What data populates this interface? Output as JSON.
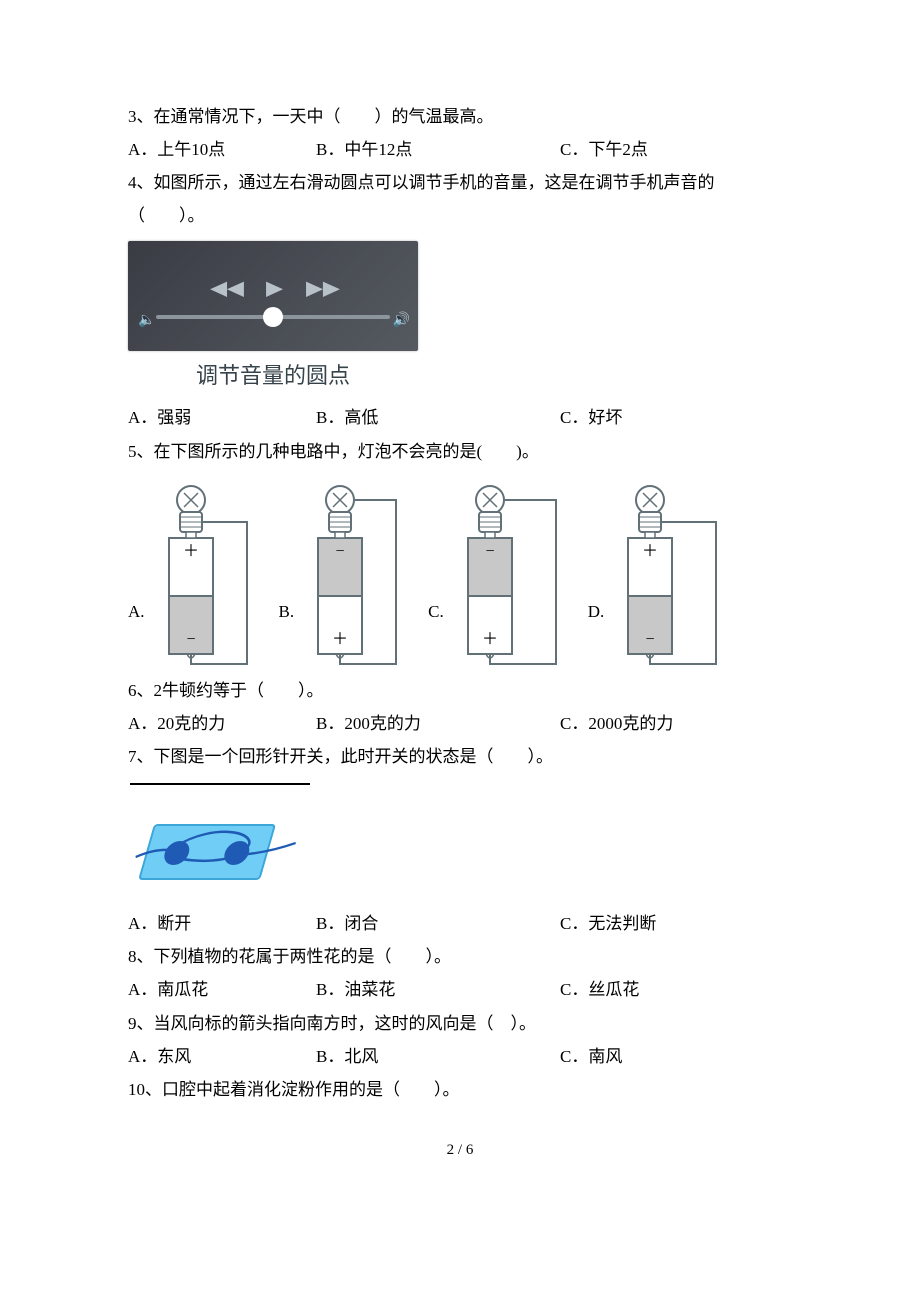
{
  "q3": {
    "stem": "3、在通常情况下，一天中（　　）的气温最高。",
    "opts": {
      "a": "A．上午10点",
      "b": "B．中午12点",
      "c": "C．下午2点"
    }
  },
  "q4": {
    "stem1": "4、如图所示，通过左右滑动圆点可以调节手机的音量，这是在调节手机声音的",
    "stem2": "（　　）。",
    "caption": "调节音量的圆点",
    "opts": {
      "a": "A．强弱",
      "b": "B．高低",
      "c": "C．好坏"
    }
  },
  "q5": {
    "stem": "5、在下图所示的几种电路中，灯泡不会亮的是(　　)。",
    "labels": {
      "a": "A.",
      "b": "B.",
      "c": "C.",
      "d": "D."
    },
    "circuits": {
      "A": {
        "top_mark": "＋",
        "bot_mark": "−",
        "top_fill": "#ffffff",
        "bot_fill": "#c8c8c8",
        "wire_from_bulb_base": true
      },
      "B": {
        "top_mark": "−",
        "bot_mark": "＋",
        "top_fill": "#c8c8c8",
        "bot_fill": "#ffffff",
        "wire_from_bulb_base": false
      },
      "C": {
        "top_mark": "−",
        "bot_mark": "＋",
        "top_fill": "#c8c8c8",
        "bot_fill": "#ffffff",
        "wire_from_bulb_base": false
      },
      "D": {
        "top_mark": "＋",
        "bot_mark": "−",
        "top_fill": "#ffffff",
        "bot_fill": "#c8c8c8",
        "wire_from_bulb_base": true
      }
    }
  },
  "q6": {
    "stem": "6、2牛顿约等于（　　）。",
    "opts": {
      "a": "A．20克的力",
      "b": "B．200克的力",
      "c": "C．2000克的力"
    }
  },
  "q7": {
    "stem": "7、下图是一个回形针开关，此时开关的状态是（　　）。",
    "opts": {
      "a": "A．断开",
      "b": "B．闭合",
      "c": "C．无法判断"
    }
  },
  "q8": {
    "stem": "8、下列植物的花属于两性花的是（　　）。",
    "opts": {
      "a": "A．南瓜花",
      "b": "B．油菜花",
      "c": "C．丝瓜花"
    }
  },
  "q9": {
    "stem": "9、当风向标的箭头指向南方时，这时的风向是（　）。",
    "opts": {
      "a": "A．东风",
      "b": "B．北风",
      "c": "C．南风"
    }
  },
  "q10": {
    "stem": "10、口腔中起着消化淀粉作用的是（　　）。"
  },
  "pagenum": "2 / 6",
  "colors": {
    "stroke": "#627078",
    "switch_board": "#6fcdf6",
    "switch_contact": "#1f5bb5"
  }
}
